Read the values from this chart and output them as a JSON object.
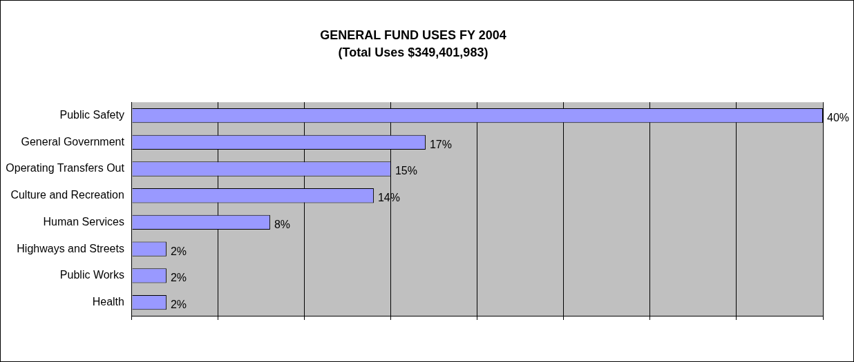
{
  "chart_data": {
    "type": "bar",
    "orientation": "horizontal",
    "title": "GENERAL FUND USES FY 2004",
    "subtitle": "(Total Uses $349,401,983)",
    "categories": [
      "Public Safety",
      "General Government",
      "Operating Transfers Out",
      "Culture and Recreation",
      "Human Services",
      "Highways and Streets",
      "Public Works",
      "Health"
    ],
    "values": [
      40,
      17,
      15,
      14,
      8,
      2,
      2,
      2
    ],
    "value_labels": [
      "40%",
      "17%",
      "15%",
      "14%",
      "8%",
      "2%",
      "2%",
      "2%"
    ],
    "color": "#9999ff",
    "grid": "x",
    "tick_labels": "y",
    "legend": false
  }
}
